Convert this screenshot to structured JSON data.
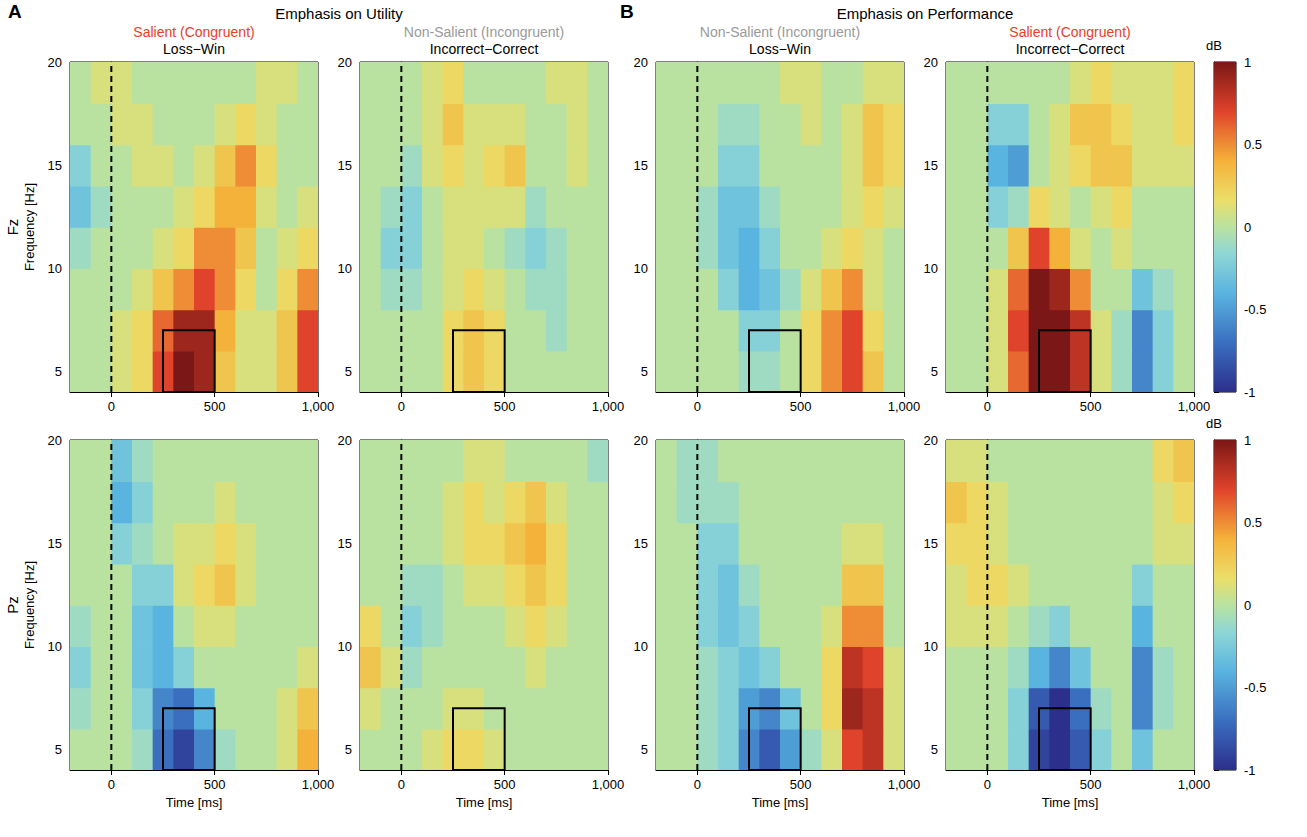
{
  "chart_data": {
    "type": "heatmap",
    "groups": [
      {
        "letter": "A",
        "title": "Emphasis on Utility"
      },
      {
        "letter": "B",
        "title": "Emphasis on Performance"
      }
    ],
    "columns": [
      {
        "group": 0,
        "condition": "Salient (Congruent)",
        "condition_color": "#e8402a",
        "contrast": "Loss−Win"
      },
      {
        "group": 0,
        "condition": "Non-Salient (Incongruent)",
        "condition_color": "#9a9a9a",
        "contrast": "Incorrect−Correct"
      },
      {
        "group": 1,
        "condition": "Non-Salient (Incongruent)",
        "condition_color": "#9a9a9a",
        "contrast": "Loss−Win"
      },
      {
        "group": 1,
        "condition": "Salient (Congruent)",
        "condition_color": "#e8402a",
        "contrast": "Incorrect−Correct"
      }
    ],
    "x_label": "Time [ms]",
    "y_label": "Frequency [Hz]",
    "xlim": [
      -200,
      1000
    ],
    "xticks": [
      0,
      500,
      1000
    ],
    "ylim": [
      4,
      20
    ],
    "yticks": [
      5,
      10,
      15,
      20
    ],
    "x": [
      -150,
      -50,
      50,
      150,
      250,
      350,
      450,
      550,
      650,
      750,
      850,
      950
    ],
    "y": [
      5,
      7,
      9,
      11,
      13,
      15,
      17,
      19
    ],
    "onset": 0,
    "window": {
      "time": [
        250,
        500
      ],
      "freq": [
        4,
        7
      ]
    },
    "colorbar": {
      "label": "dB",
      "range": [
        -1,
        1
      ],
      "ticks": [
        -1,
        -0.5,
        0,
        0.5,
        1
      ]
    },
    "rows": [
      {
        "label": "Fz",
        "panels": [
          [
            [
              0,
              0,
              0.1,
              0.2,
              0.7,
              1.0,
              0.9,
              0.3,
              0.1,
              0.1,
              0.3,
              0.7
            ],
            [
              0,
              0,
              0.1,
              0.2,
              0.6,
              0.9,
              0.9,
              0.4,
              0.1,
              0.1,
              0.3,
              0.7
            ],
            [
              0,
              0,
              0,
              0.1,
              0.3,
              0.5,
              0.7,
              0.5,
              0.2,
              0,
              0.2,
              0.5
            ],
            [
              -0.1,
              0,
              0,
              0,
              0.1,
              0.2,
              0.5,
              0.5,
              0.3,
              0,
              0.1,
              0.2
            ],
            [
              -0.3,
              -0.1,
              0,
              0,
              0,
              0.1,
              0.2,
              0.4,
              0.4,
              0.1,
              0,
              0.1
            ],
            [
              -0.2,
              0,
              0,
              0.1,
              0.1,
              0,
              0.1,
              0.3,
              0.5,
              0.2,
              0,
              0
            ],
            [
              0,
              0,
              0.1,
              0.1,
              0,
              0,
              0,
              0.1,
              0.2,
              0.1,
              0,
              0
            ],
            [
              0,
              0.1,
              0.1,
              0,
              0,
              0,
              0,
              0,
              0,
              0.1,
              0.1,
              0
            ]
          ],
          [
            [
              0,
              0,
              0,
              0,
              0.2,
              0.3,
              0.2,
              0,
              0,
              0,
              0,
              0
            ],
            [
              0,
              0,
              0,
              0,
              0.2,
              0.3,
              0.2,
              0,
              0,
              -0.1,
              0,
              0
            ],
            [
              0,
              -0.1,
              -0.1,
              0,
              0.1,
              0.2,
              0.1,
              0,
              -0.1,
              -0.1,
              0,
              0
            ],
            [
              0,
              -0.2,
              -0.2,
              0,
              0.1,
              0.1,
              0,
              -0.1,
              -0.2,
              -0.1,
              0,
              0
            ],
            [
              0,
              -0.1,
              -0.2,
              0,
              0.1,
              0.1,
              0.1,
              0.1,
              -0.1,
              0,
              0,
              0
            ],
            [
              0,
              0,
              -0.1,
              0.1,
              0.2,
              0.1,
              0.2,
              0.3,
              0,
              0,
              0.1,
              0
            ],
            [
              0,
              0,
              0,
              0.1,
              0.3,
              0.1,
              0.1,
              0.1,
              0,
              0,
              0.1,
              0
            ],
            [
              0,
              0,
              0,
              0.1,
              0.2,
              0,
              0,
              0,
              0,
              0.1,
              0.1,
              0
            ]
          ],
          [
            [
              0,
              0,
              0,
              0,
              -0.1,
              -0.1,
              0,
              0.2,
              0.5,
              0.7,
              0.3,
              0
            ],
            [
              0,
              0,
              0,
              0,
              -0.2,
              -0.2,
              0,
              0.2,
              0.5,
              0.7,
              0.2,
              0
            ],
            [
              0,
              0,
              0,
              -0.2,
              -0.4,
              -0.3,
              -0.1,
              0.1,
              0.3,
              0.5,
              0.1,
              0
            ],
            [
              0,
              0,
              -0.1,
              -0.3,
              -0.4,
              -0.2,
              0,
              0,
              0.1,
              0.2,
              0.1,
              0
            ],
            [
              0,
              0,
              -0.1,
              -0.3,
              -0.3,
              -0.1,
              0,
              0,
              0,
              0.1,
              0.2,
              0.1
            ],
            [
              0,
              0,
              0,
              -0.2,
              -0.2,
              0,
              0,
              0,
              0,
              0.1,
              0.3,
              0.2
            ],
            [
              0,
              0,
              0,
              -0.1,
              -0.1,
              0,
              0,
              0.1,
              0,
              0.1,
              0.3,
              0.2
            ],
            [
              0,
              0,
              0,
              0,
              0,
              0,
              0.1,
              0.1,
              0,
              0,
              0.1,
              0.1
            ]
          ],
          [
            [
              0,
              0,
              0.1,
              0.6,
              1.0,
              1.0,
              0.8,
              0.1,
              -0.1,
              -0.6,
              -0.2,
              0
            ],
            [
              0,
              0,
              0.1,
              0.7,
              1.0,
              1.0,
              0.8,
              0.1,
              -0.1,
              -0.6,
              -0.2,
              0
            ],
            [
              0,
              0,
              0.1,
              0.6,
              1.0,
              0.9,
              0.5,
              0,
              0,
              -0.3,
              -0.1,
              0
            ],
            [
              0,
              0,
              0,
              0.3,
              0.7,
              0.4,
              0.1,
              0,
              0.1,
              0,
              0,
              0
            ],
            [
              0,
              0,
              -0.2,
              -0.1,
              0.2,
              0.1,
              0,
              0.1,
              0.2,
              0,
              0,
              0
            ],
            [
              0,
              0,
              -0.4,
              -0.5,
              0,
              0.1,
              0.2,
              0.3,
              0.3,
              0.1,
              0.1,
              0.1
            ],
            [
              0,
              0,
              -0.2,
              -0.2,
              0,
              0.1,
              0.3,
              0.3,
              0.2,
              0.1,
              0.1,
              0.2
            ],
            [
              0,
              0,
              0,
              0,
              0,
              0,
              0.1,
              0.2,
              0.1,
              0.1,
              0.1,
              0.2
            ]
          ]
        ]
      },
      {
        "label": "Pz",
        "panels": [
          [
            [
              0,
              0,
              0,
              -0.1,
              -0.7,
              -0.9,
              -0.6,
              -0.1,
              0,
              0,
              0.1,
              0.4
            ],
            [
              -0.1,
              0,
              0,
              -0.2,
              -0.6,
              -0.7,
              -0.4,
              0,
              0,
              0,
              0.1,
              0.3
            ],
            [
              -0.2,
              0,
              0,
              -0.3,
              -0.4,
              -0.2,
              0,
              0,
              0,
              0,
              0,
              0.1
            ],
            [
              -0.1,
              0,
              0,
              -0.3,
              -0.4,
              0,
              0.1,
              0.1,
              0,
              0,
              0,
              0
            ],
            [
              0,
              0,
              0,
              -0.2,
              -0.2,
              0.1,
              0.2,
              0.3,
              0.1,
              0,
              0,
              0
            ],
            [
              0,
              0,
              -0.2,
              -0.1,
              0,
              0.1,
              0.1,
              0.2,
              0.1,
              0,
              0,
              0
            ],
            [
              0,
              0,
              -0.4,
              -0.2,
              0,
              0,
              0,
              0.1,
              0,
              0,
              0,
              0
            ],
            [
              0,
              0,
              -0.3,
              -0.1,
              0,
              0,
              0,
              0,
              0,
              0,
              0,
              0
            ]
          ],
          [
            [
              0,
              0,
              0,
              0.1,
              0.2,
              0.2,
              0.1,
              0,
              0,
              0,
              0,
              0
            ],
            [
              0.1,
              0,
              0,
              0,
              0.1,
              0.1,
              0,
              0,
              0,
              0,
              0,
              0
            ],
            [
              0.3,
              0.1,
              -0.1,
              0,
              0,
              0,
              0,
              0,
              0.1,
              0,
              0,
              0
            ],
            [
              0.2,
              0,
              -0.2,
              -0.1,
              0,
              0,
              0,
              0.1,
              0.2,
              0.1,
              0,
              0
            ],
            [
              0,
              0,
              -0.1,
              -0.1,
              0,
              0.1,
              0.1,
              0.2,
              0.3,
              0.2,
              0,
              0
            ],
            [
              0,
              0,
              0,
              0,
              0.1,
              0.2,
              0.2,
              0.3,
              0.4,
              0.2,
              0,
              0
            ],
            [
              0,
              0,
              0,
              0,
              0.1,
              0.2,
              0.1,
              0.2,
              0.3,
              0.1,
              0,
              0
            ],
            [
              0,
              0,
              0,
              0,
              0,
              0.1,
              0.1,
              0,
              0,
              0,
              0,
              -0.1
            ]
          ],
          [
            [
              0,
              0,
              -0.1,
              -0.2,
              -0.6,
              -0.8,
              -0.5,
              -0.1,
              0.1,
              0.7,
              0.8,
              0.1
            ],
            [
              0,
              0,
              -0.1,
              -0.2,
              -0.5,
              -0.6,
              -0.3,
              0,
              0.2,
              0.9,
              0.8,
              0.1
            ],
            [
              0,
              0,
              -0.1,
              -0.2,
              -0.3,
              -0.2,
              0,
              0,
              0.2,
              0.8,
              0.7,
              0.1
            ],
            [
              0,
              0,
              -0.2,
              -0.3,
              -0.2,
              0,
              0,
              0,
              0.1,
              0.5,
              0.5,
              0
            ],
            [
              0,
              0,
              -0.2,
              -0.3,
              -0.1,
              0,
              0,
              0,
              0,
              0.3,
              0.3,
              0
            ],
            [
              0,
              0,
              -0.2,
              -0.2,
              0,
              0,
              0,
              0,
              0,
              0.1,
              0.1,
              0
            ],
            [
              0,
              -0.1,
              -0.1,
              -0.1,
              0,
              0,
              0,
              0,
              0,
              0,
              0,
              0
            ],
            [
              0,
              -0.1,
              -0.1,
              0,
              0,
              0,
              0,
              0,
              0,
              0,
              0,
              0
            ]
          ],
          [
            [
              0,
              0,
              0,
              -0.2,
              -0.9,
              -1.0,
              -0.8,
              -0.2,
              0,
              -0.3,
              0,
              0
            ],
            [
              0,
              0,
              0,
              -0.2,
              -0.8,
              -1.0,
              -0.7,
              -0.1,
              0,
              -0.6,
              -0.1,
              0
            ],
            [
              0,
              0,
              0,
              -0.1,
              -0.4,
              -0.6,
              -0.3,
              0,
              0,
              -0.6,
              -0.1,
              0
            ],
            [
              0.1,
              0.1,
              0.1,
              0,
              -0.1,
              -0.2,
              0,
              0,
              0,
              -0.4,
              0,
              0
            ],
            [
              0.1,
              0.2,
              0.2,
              0.1,
              0,
              0,
              0,
              0,
              0,
              -0.2,
              0,
              0
            ],
            [
              0.2,
              0.2,
              0.1,
              0,
              0,
              0,
              0,
              0,
              0,
              0,
              0.1,
              0.1
            ],
            [
              0.3,
              0.2,
              0.1,
              0,
              0,
              0,
              0,
              0,
              0,
              0,
              0.1,
              0.2
            ],
            [
              0.1,
              0.1,
              0,
              0,
              0,
              0,
              0,
              0,
              0,
              0,
              0.2,
              0.3
            ]
          ]
        ]
      }
    ]
  }
}
